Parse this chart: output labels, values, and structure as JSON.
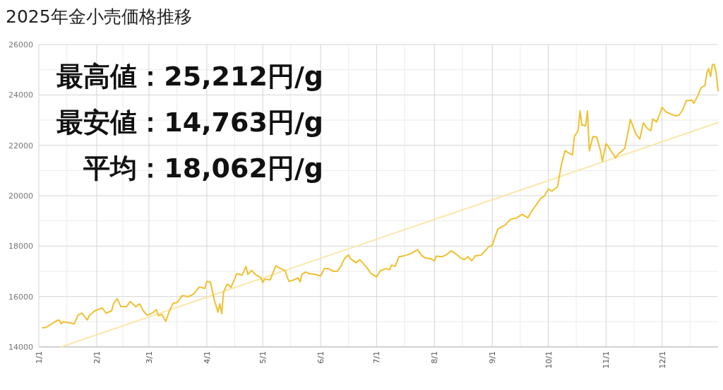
{
  "chart_data": {
    "type": "line",
    "title": "2025年金小売価格推移",
    "annotations": [
      "最高値：25,212円/g",
      "最安値：14,763円/g",
      "平均：18,062円/g"
    ],
    "xlim": [
      "2025-01-01",
      "2025-12-31"
    ],
    "xticks": [
      {
        "value": "2025-01-01",
        "label": "1/1"
      },
      {
        "value": "2025-01-16",
        "label": null
      },
      {
        "value": "2025-02-01",
        "label": "2/1"
      },
      {
        "value": "2025-02-15",
        "label": null
      },
      {
        "value": "2025-03-01",
        "label": "3/1"
      },
      {
        "value": "2025-03-16",
        "label": null
      },
      {
        "value": "2025-04-01",
        "label": "4/1"
      },
      {
        "value": "2025-04-16",
        "label": null
      },
      {
        "value": "2025-05-01",
        "label": "5/1"
      },
      {
        "value": "2025-05-16",
        "label": null
      },
      {
        "value": "2025-06-01",
        "label": "6/1"
      },
      {
        "value": "2025-06-16",
        "label": null
      },
      {
        "value": "2025-07-01",
        "label": "7/1"
      },
      {
        "value": "2025-07-16",
        "label": null
      },
      {
        "value": "2025-08-01",
        "label": "8/1"
      },
      {
        "value": "2025-08-16",
        "label": null
      },
      {
        "value": "2025-09-01",
        "label": "9/1"
      },
      {
        "value": "2025-09-16",
        "label": null
      },
      {
        "value": "2025-10-01",
        "label": "10/1"
      },
      {
        "value": "2025-10-16",
        "label": null
      },
      {
        "value": "2025-11-01",
        "label": "11/1"
      },
      {
        "value": "2025-11-16",
        "label": null
      },
      {
        "value": "2025-12-01",
        "label": "12/1"
      },
      {
        "value": "2025-12-16",
        "label": null
      }
    ],
    "ylim": [
      14000,
      26000
    ],
    "yticks": [
      14000,
      {
        "value": 15000,
        "label": null
      },
      16000,
      {
        "value": 17000,
        "label": null
      },
      18000,
      {
        "value": 19000,
        "label": null
      },
      20000,
      {
        "value": 21000,
        "label": null
      },
      22000,
      {
        "value": 23000,
        "label": null
      },
      24000,
      {
        "value": 25000,
        "label": null
      },
      26000
    ],
    "grid": true,
    "series": [
      {
        "type": "line",
        "color": "#f0c030",
        "x": [
          "2025-01-03",
          "2025-01-05",
          "2025-01-07",
          "2025-01-11",
          "2025-01-12",
          "2025-01-13",
          "2025-01-14",
          "2025-01-17",
          "2025-01-20",
          "2025-01-22",
          "2025-01-24",
          "2025-01-27",
          "2025-01-28",
          "2025-01-31",
          "2025-02-04",
          "2025-02-06",
          "2025-02-09",
          "2025-02-10",
          "2025-02-12",
          "2025-02-14",
          "2025-02-17",
          "2025-02-19",
          "2025-02-22",
          "2025-02-24",
          "2025-02-26",
          "2025-02-28",
          "2025-03-03",
          "2025-03-05",
          "2025-03-06",
          "2025-03-08",
          "2025-03-10",
          "2025-03-12",
          "2025-03-14",
          "2025-03-16",
          "2025-03-19",
          "2025-03-22",
          "2025-03-25",
          "2025-03-28",
          "2025-03-31",
          "2025-04-01",
          "2025-04-03",
          "2025-04-05",
          "2025-04-07",
          "2025-04-08",
          "2025-04-09",
          "2025-04-10",
          "2025-04-12",
          "2025-04-14",
          "2025-04-17",
          "2025-04-20",
          "2025-04-22",
          "2025-04-23",
          "2025-04-25",
          "2025-04-27",
          "2025-04-30",
          "2025-05-01",
          "2025-05-02",
          "2025-05-05",
          "2025-05-08",
          "2025-05-10",
          "2025-05-12",
          "2025-05-13",
          "2025-05-15",
          "2025-05-17",
          "2025-05-20",
          "2025-05-21",
          "2025-05-22",
          "2025-05-24",
          "2025-05-26",
          "2025-05-29",
          "2025-06-01",
          "2025-06-03",
          "2025-06-05",
          "2025-06-08",
          "2025-06-10",
          "2025-06-12",
          "2025-06-14",
          "2025-06-16",
          "2025-06-17",
          "2025-06-20",
          "2025-06-22",
          "2025-06-26",
          "2025-06-28",
          "2025-07-01",
          "2025-07-03",
          "2025-07-06",
          "2025-07-08",
          "2025-07-09",
          "2025-07-11",
          "2025-07-13",
          "2025-07-15",
          "2025-07-19",
          "2025-07-23",
          "2025-07-25",
          "2025-07-27",
          "2025-07-30",
          "2025-08-01",
          "2025-08-02",
          "2025-08-05",
          "2025-08-07",
          "2025-08-10",
          "2025-08-12",
          "2025-08-15",
          "2025-08-17",
          "2025-08-19",
          "2025-08-21",
          "2025-08-23",
          "2025-08-26",
          "2025-08-27",
          "2025-08-30",
          "2025-08-31",
          "2025-09-01",
          "2025-09-04",
          "2025-09-08",
          "2025-09-10",
          "2025-09-11",
          "2025-09-14",
          "2025-09-17",
          "2025-09-20",
          "2025-09-22",
          "2025-09-25",
          "2025-09-27",
          "2025-09-29",
          "2025-10-01",
          "2025-10-03",
          "2025-10-06",
          "2025-10-08",
          "2025-10-10",
          "2025-10-12",
          "2025-10-14",
          "2025-10-15",
          "2025-10-17",
          "2025-10-18",
          "2025-10-19",
          "2025-10-21",
          "2025-10-22",
          "2025-10-23",
          "2025-10-25",
          "2025-10-27",
          "2025-10-29",
          "2025-10-30",
          "2025-11-01",
          "2025-11-03",
          "2025-11-06",
          "2025-11-08",
          "2025-11-09",
          "2025-11-11",
          "2025-11-13",
          "2025-11-14",
          "2025-11-17",
          "2025-11-19",
          "2025-11-21",
          "2025-11-23",
          "2025-11-25",
          "2025-11-26",
          "2025-11-28",
          "2025-11-29",
          "2025-12-01",
          "2025-12-03",
          "2025-12-06",
          "2025-12-08",
          "2025-12-10",
          "2025-12-12",
          "2025-12-14",
          "2025-12-17",
          "2025-12-18",
          "2025-12-20",
          "2025-12-22",
          "2025-12-24",
          "2025-12-25",
          "2025-12-26",
          "2025-12-27",
          "2025-12-28",
          "2025-12-29",
          "2025-12-30",
          "2025-12-31"
        ],
        "values": [
          14760,
          14780,
          14870,
          15060,
          15060,
          14920,
          15000,
          14960,
          14920,
          15260,
          15340,
          15070,
          15240,
          15430,
          15550,
          15340,
          15430,
          15710,
          15910,
          15600,
          15600,
          15800,
          15590,
          15710,
          15430,
          15260,
          15350,
          15480,
          15240,
          15290,
          15010,
          15430,
          15730,
          15760,
          16040,
          15990,
          16100,
          16380,
          16320,
          16600,
          16570,
          15870,
          15380,
          15710,
          15320,
          16180,
          16500,
          16360,
          16900,
          16850,
          17190,
          16880,
          17040,
          16880,
          16750,
          16550,
          16690,
          16660,
          17220,
          17130,
          17060,
          17020,
          16600,
          16640,
          16740,
          16580,
          16880,
          16970,
          16910,
          16880,
          16810,
          17110,
          17110,
          17000,
          17000,
          17220,
          17530,
          17650,
          17500,
          17340,
          17460,
          17130,
          16910,
          16780,
          17020,
          17110,
          17060,
          17250,
          17200,
          17580,
          17600,
          17690,
          17860,
          17640,
          17530,
          17500,
          17410,
          17600,
          17580,
          17640,
          17810,
          17720,
          17530,
          17460,
          17580,
          17420,
          17620,
          17640,
          17720,
          17970,
          18000,
          18050,
          18680,
          18840,
          19010,
          19070,
          19120,
          19260,
          19120,
          19370,
          19680,
          19900,
          19990,
          20270,
          20180,
          20360,
          21220,
          21790,
          21690,
          21620,
          22350,
          22580,
          23370,
          22810,
          22770,
          23360,
          21790,
          22350,
          22330,
          21790,
          21370,
          22070,
          21860,
          21500,
          21690,
          21740,
          21880,
          22610,
          23030,
          22440,
          22250,
          22890,
          22670,
          22580,
          23050,
          22930,
          23090,
          23510,
          23330,
          23230,
          23170,
          23190,
          23400,
          23770,
          23790,
          23670,
          23950,
          24290,
          24380,
          24870,
          25040,
          24730,
          25200,
          25210,
          24870,
          24170
        ]
      },
      {
        "type": "line",
        "color": "#fbe7aa",
        "x": [
          "2025-01-13",
          "2025-12-31"
        ],
        "values": [
          14000,
          22900
        ]
      }
    ]
  }
}
